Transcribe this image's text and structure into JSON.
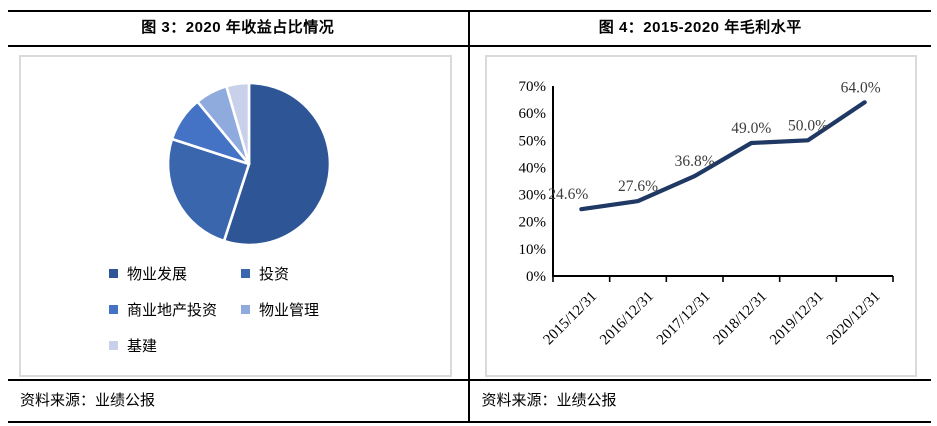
{
  "left": {
    "title": "图 3：2020 年收益占比情况",
    "source": "资料来源：业绩公报",
    "chart_data": {
      "type": "pie",
      "title": "2020 年收益占比情况",
      "labels": [
        "物业发展",
        "投资",
        "商业地产投资",
        "物业管理",
        "基建"
      ],
      "values": [
        55,
        25,
        9,
        6.5,
        4.5
      ],
      "values_unit": "percent (estimated from slice angles, no data labels shown)",
      "colors": [
        "#2E5596",
        "#3A66AE",
        "#4472C4",
        "#8FAADC",
        "#C9D1EA"
      ],
      "start_angle_deg": 0,
      "slice_border_color": "#FFFFFF",
      "legend_position": "bottom-left",
      "legend_columns": 2
    }
  },
  "right": {
    "title": "图 4：2015-2020 年毛利水平",
    "source": "资料来源：业绩公报",
    "chart_data": {
      "type": "line",
      "x": [
        "2015/12/31",
        "2016/12/31",
        "2017/12/31",
        "2018/12/31",
        "2019/12/31",
        "2020/12/31"
      ],
      "values": [
        24.6,
        27.6,
        36.8,
        49.0,
        50.0,
        64.0
      ],
      "data_labels": [
        "24.6%",
        "27.6%",
        "36.8%",
        "49.0%",
        "50.0%",
        "64.0%"
      ],
      "y_ticks": [
        "0%",
        "10%",
        "20%",
        "30%",
        "40%",
        "50%",
        "60%",
        "70%"
      ],
      "ylim": [
        0,
        70
      ],
      "line_color": "#1F3864",
      "axis_color": "#000000",
      "label_color": "#3d3d3d",
      "grid": false,
      "legend": "none",
      "x_label_rotation_deg": -45
    }
  }
}
